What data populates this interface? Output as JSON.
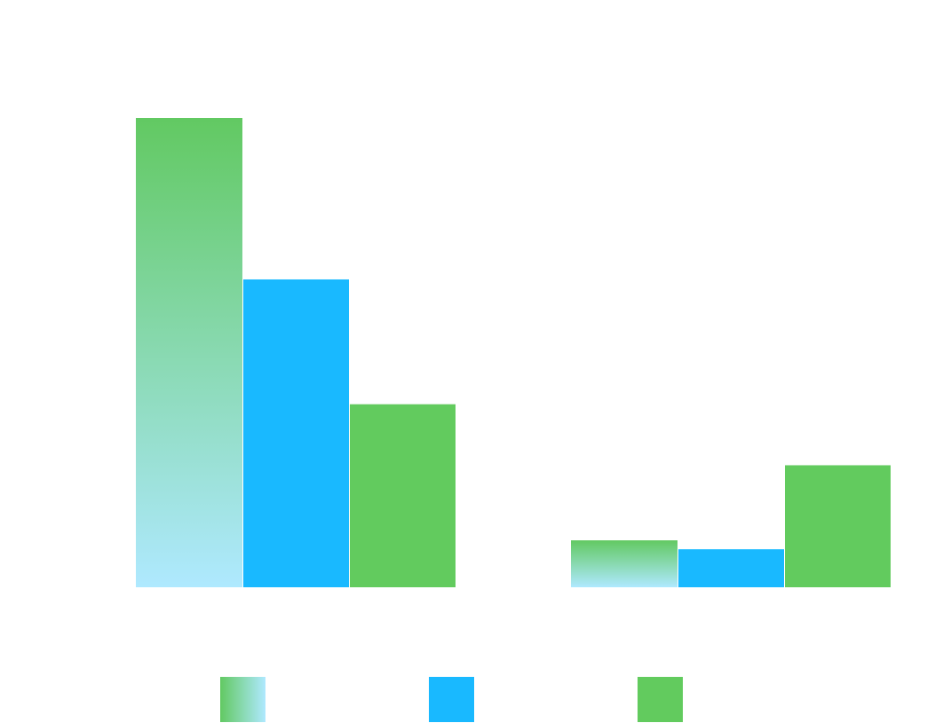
{
  "chart_data": {
    "type": "bar",
    "categories": [
      "",
      ""
    ],
    "series": [
      {
        "values": [
          100,
          10
        ],
        "fill": "gradient",
        "color_top": "#62c962",
        "color_bottom": "#afe9ff"
      },
      {
        "values": [
          65.6,
          8.1
        ],
        "fill": "solid",
        "color": "#19b9ff"
      },
      {
        "values": [
          39,
          26
        ],
        "fill": "solid",
        "color": "#62cb5e"
      }
    ],
    "ylim": [
      0,
      100
    ],
    "grid": false,
    "legend": {
      "placement": "bottom"
    },
    "title": "",
    "xlabel": "",
    "ylabel": ""
  }
}
